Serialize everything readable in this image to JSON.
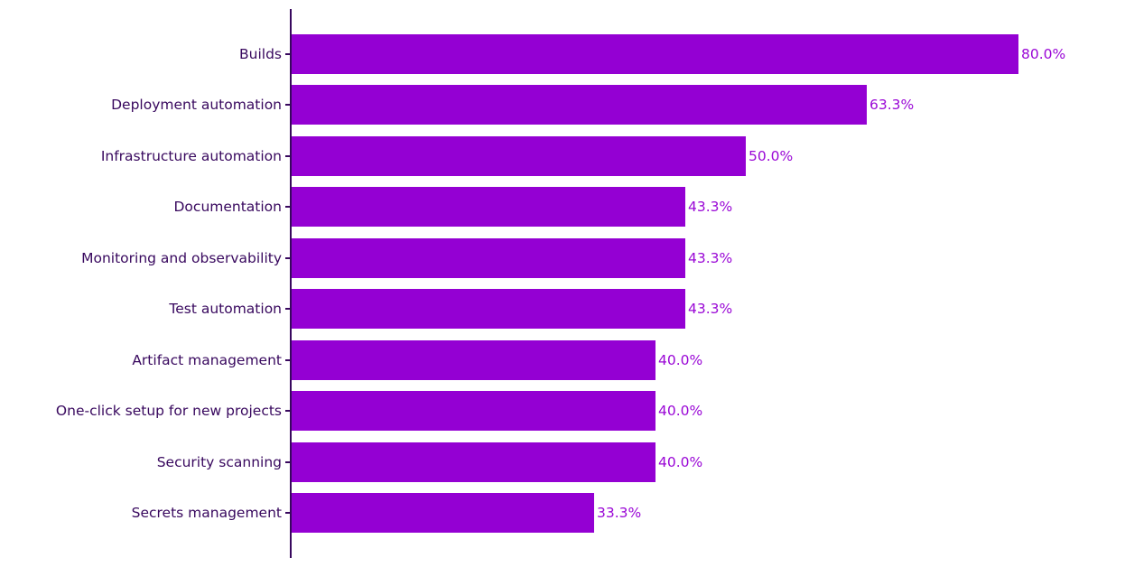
{
  "chart_data": {
    "type": "bar",
    "orientation": "horizontal",
    "title": "",
    "xlabel": "",
    "ylabel": "",
    "categories": [
      "Builds",
      "Deployment automation",
      "Infrastructure automation",
      "Documentation",
      "Monitoring and observability",
      "Test automation",
      "Artifact management",
      "One-click setup for new projects",
      "Security scanning",
      "Secrets management"
    ],
    "values": [
      80.0,
      63.3,
      50.0,
      43.3,
      43.3,
      43.3,
      40.0,
      40.0,
      40.0,
      33.3
    ],
    "value_labels": [
      "80.0%",
      "63.3%",
      "50.0%",
      "43.3%",
      "43.3%",
      "43.3%",
      "40.0%",
      "40.0%",
      "40.0%",
      "33.3%"
    ],
    "xlim": [
      0,
      91.8
    ],
    "grid": false,
    "legend": false,
    "colors": {
      "bar": "#9400d3",
      "value_label": "#9a07d6",
      "category_label": "#38085e",
      "axis": "#38085e"
    }
  }
}
